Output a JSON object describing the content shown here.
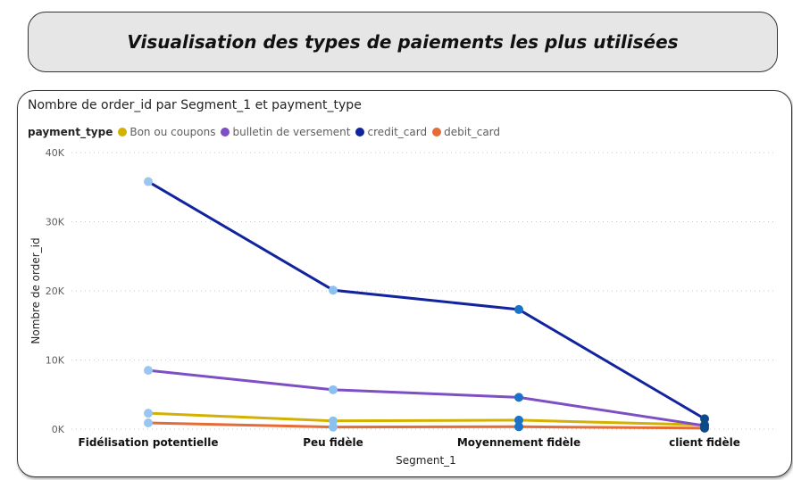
{
  "header": {
    "title": "Visualisation des types de paiements les plus utilisées"
  },
  "chart_data": {
    "type": "line",
    "title": "Nombre de order_id par Segment_1 et payment_type",
    "xlabel": "Segment_1",
    "ylabel": "Nombre de order_id",
    "legend_title": "payment_type",
    "legend_position": "top-left",
    "grid": true,
    "ylim": [
      0,
      40000
    ],
    "yticks": [
      0,
      10000,
      20000,
      30000,
      40000
    ],
    "ytick_labels": [
      "0K",
      "10K",
      "20K",
      "30K",
      "40K"
    ],
    "categories": [
      "Fidélisation potentielle",
      "Peu fidèle",
      "Moyennement fidèle",
      "client fidèle"
    ],
    "series": [
      {
        "name": "Bon ou coupons",
        "color": "#d4b100",
        "values": [
          2300,
          1200,
          1300,
          600
        ]
      },
      {
        "name": "bulletin de versement",
        "color": "#7e4fc4",
        "values": [
          8500,
          5700,
          4600,
          500
        ]
      },
      {
        "name": "credit_card",
        "color": "#12239e",
        "values": [
          35800,
          20100,
          17300,
          1500
        ]
      },
      {
        "name": "debit_card",
        "color": "#e66c37",
        "values": [
          900,
          300,
          350,
          150
        ]
      }
    ],
    "marker_colors": [
      "#99c7f2",
      "#8cc0f0",
      "#1a73c8",
      "#0d4a87"
    ]
  }
}
